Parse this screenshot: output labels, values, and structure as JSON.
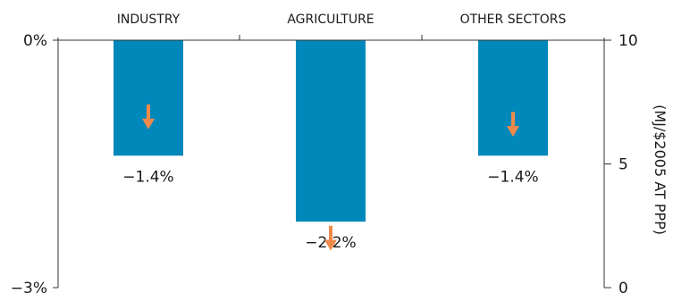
{
  "chart_data": {
    "type": "bar",
    "categories": [
      "INDUSTRY",
      "AGRICULTURE",
      "OTHER SECTORS"
    ],
    "values": [
      -1.4,
      -2.2,
      -1.4
    ],
    "value_labels": [
      "−1.4%",
      "−2.2%",
      "−1.4%"
    ],
    "left_axis": {
      "ylim": [
        -3,
        0
      ],
      "ticks": [
        0,
        -3
      ],
      "tick_labels": [
        "0%",
        "−3%"
      ]
    },
    "right_axis": {
      "ylim": [
        0,
        10
      ],
      "ticks": [
        10,
        5,
        0
      ],
      "tick_labels": [
        "10",
        "5",
        "0"
      ],
      "label": "(MJ/$2005 AT PPP)"
    },
    "arrows": [
      {
        "category": "INDUSTRY",
        "direction": "down",
        "from": 7.4,
        "to": 6.4
      },
      {
        "category": "AGRICULTURE",
        "direction": "down",
        "from": 2.5,
        "to": 1.5
      },
      {
        "category": "OTHER SECTORS",
        "direction": "down",
        "from": 7.1,
        "to": 6.1
      }
    ],
    "grid": false,
    "legend": "none"
  },
  "colors": {
    "bar": "#0088bb",
    "arrow": "#f08a4b",
    "axis": "#333333",
    "text": "#1a1a1a"
  }
}
